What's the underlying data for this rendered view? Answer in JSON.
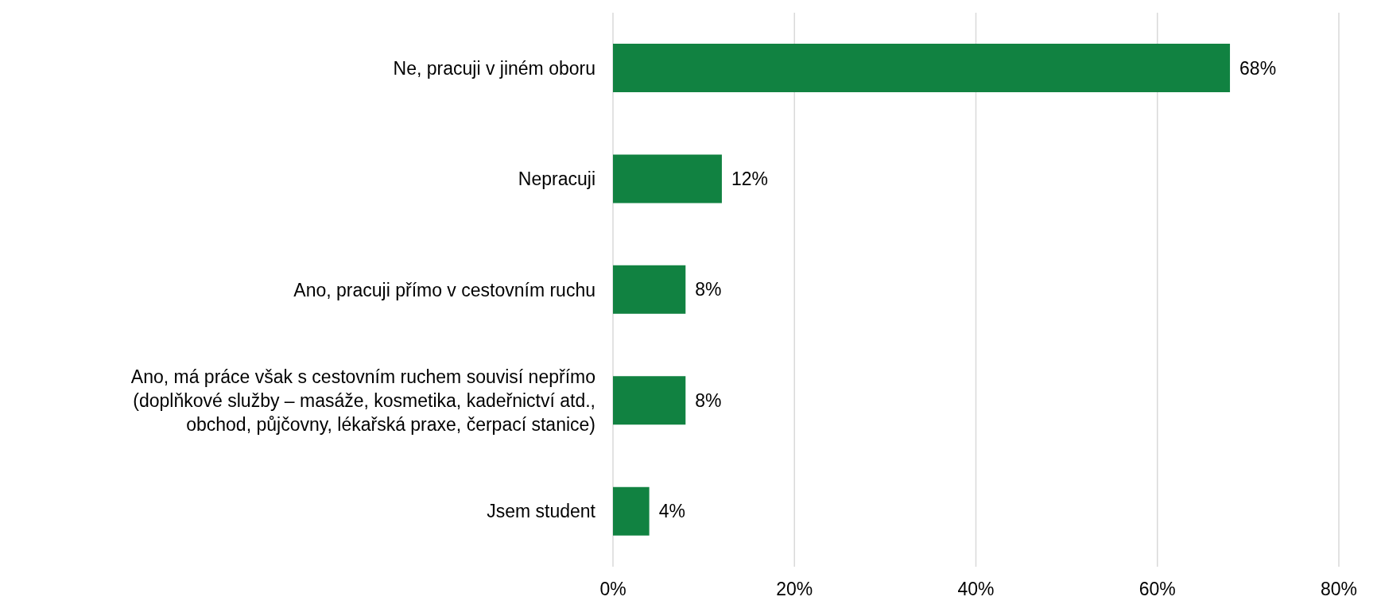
{
  "chart_data": {
    "type": "bar",
    "orientation": "horizontal",
    "categories": [
      "Ne, pracuji v jiném oboru",
      "Nepracuji",
      "Ano, pracuji přímo v cestovním ruchu",
      "Ano, má práce však s cestovním ruchem souvisí nepřímo (doplňkové služby – masáže, kosmetika, kadeřnictví atd., obchod, půjčovny, lékařská praxe, čerpací stanice)",
      "Jsem student"
    ],
    "values": [
      68,
      12,
      8,
      8,
      4
    ],
    "value_labels": [
      "68%",
      "12%",
      "8%",
      "8%",
      "4%"
    ],
    "color": "#118241",
    "xlim": [
      0,
      80
    ],
    "xticks": [
      {
        "value": 0,
        "label": "0%"
      },
      {
        "value": 20,
        "label": "20%"
      },
      {
        "value": 40,
        "label": "40%"
      },
      {
        "value": 60,
        "label": "60%"
      },
      {
        "value": 80,
        "label": "80%"
      }
    ],
    "grid": "x"
  }
}
